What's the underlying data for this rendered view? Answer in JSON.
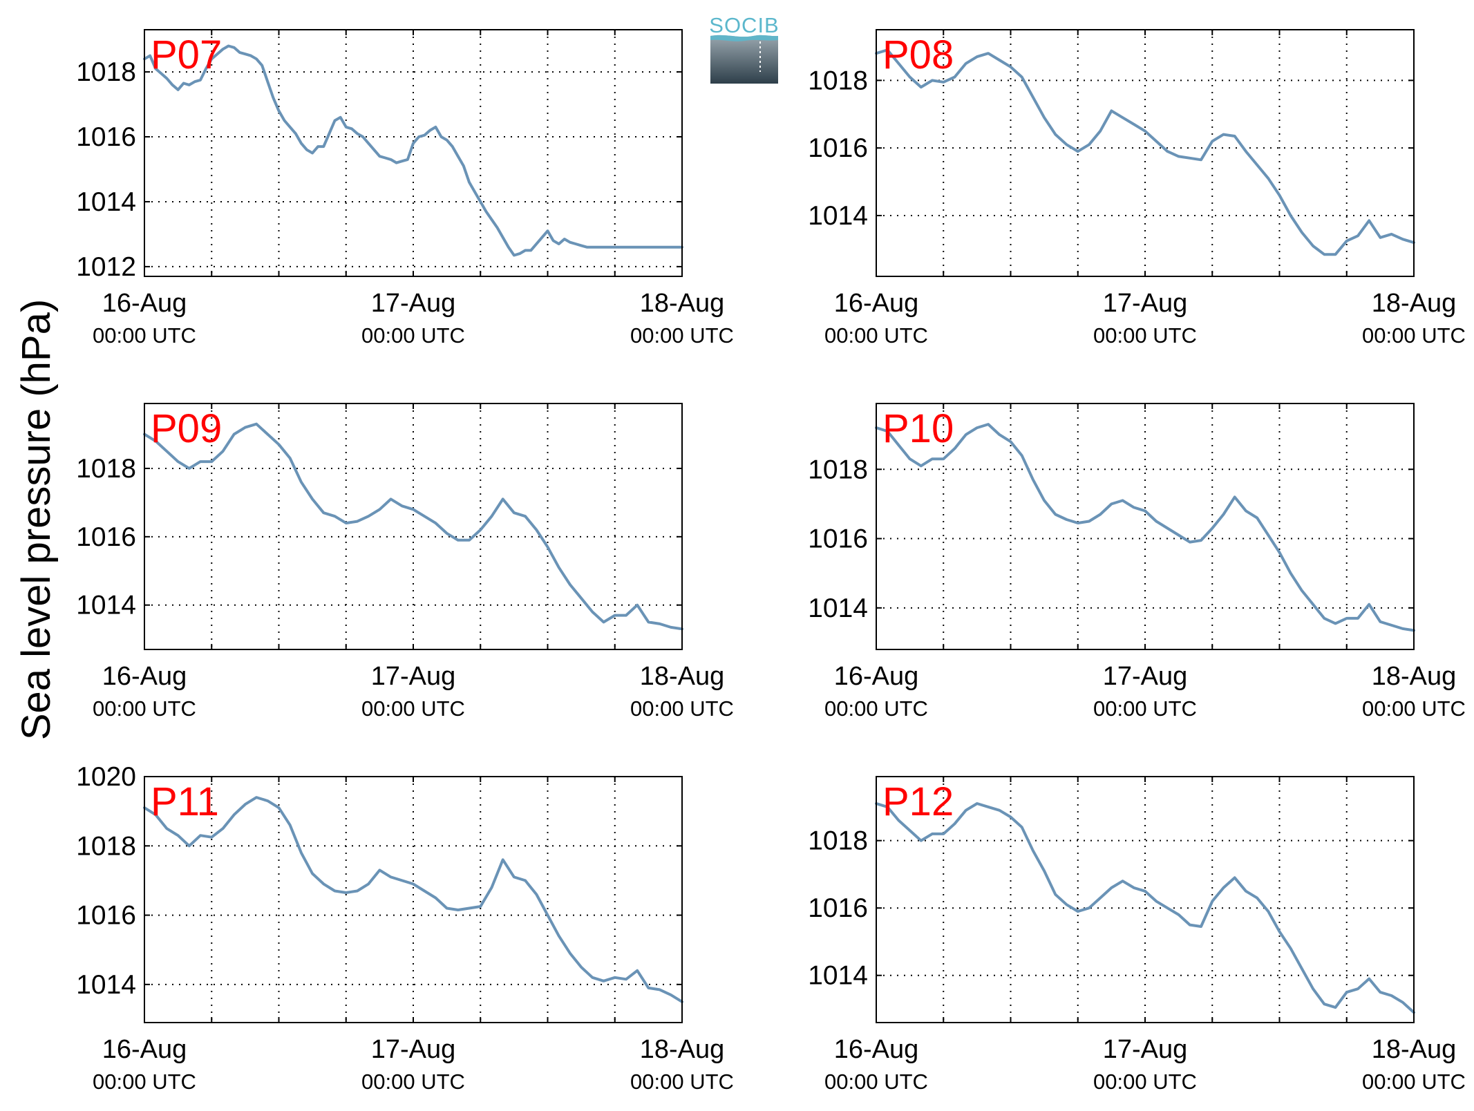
{
  "figure": {
    "ylabel": "Sea level pressure (hPa)",
    "logo_text": "SOCIB",
    "colors": {
      "line": "#6A93B6",
      "panel_label": "#FF0000",
      "grid": "#000000",
      "logo_accent": "#5BB7CC"
    }
  },
  "chart_data": [
    {
      "type": "line",
      "panel_label": "P07",
      "x_tick_dates": [
        "16-Aug",
        "17-Aug",
        "18-Aug"
      ],
      "x_tick_times": [
        "00:00 UTC",
        "00:00 UTC",
        "00:00 UTC"
      ],
      "xlim": [
        0,
        48
      ],
      "ylim": [
        1011.7,
        1019.3
      ],
      "yticks": [
        1012,
        1014,
        1016,
        1018
      ],
      "grid": true,
      "x": [
        0,
        0.5,
        1,
        1.5,
        2,
        2.5,
        3,
        3.5,
        4,
        4.5,
        5,
        5.5,
        6,
        6.5,
        7,
        7.5,
        8,
        8.5,
        9,
        9.5,
        10,
        10.5,
        11,
        11.5,
        12,
        12.5,
        13,
        13.5,
        14,
        14.5,
        15,
        15.5,
        16,
        16.5,
        17,
        17.5,
        18,
        18.5,
        19,
        19.5,
        20,
        20.5,
        21,
        21.5,
        22,
        22.5,
        23,
        23.5,
        24,
        24.5,
        25,
        25.5,
        26,
        26.5,
        27,
        27.5,
        28,
        28.5,
        29,
        29.5,
        30,
        30.5,
        31,
        31.5,
        32,
        32.5,
        33,
        33.5,
        34,
        34.5,
        35,
        35.5,
        36,
        36.5,
        37,
        37.5,
        38,
        38.5,
        39,
        39.5,
        40,
        40.5,
        41,
        41.5,
        42,
        42.5,
        43,
        43.5,
        44,
        44.5,
        45,
        45.5,
        46,
        46.5,
        47,
        47.5,
        48
      ],
      "y": [
        1018.4,
        1018.5,
        1018.1,
        1017.95,
        1017.8,
        1017.6,
        1017.45,
        1017.65,
        1017.6,
        1017.7,
        1017.75,
        1018.1,
        1018.4,
        1018.55,
        1018.7,
        1018.8,
        1018.75,
        1018.6,
        1018.55,
        1018.5,
        1018.4,
        1018.2,
        1017.7,
        1017.2,
        1016.8,
        1016.5,
        1016.3,
        1016.1,
        1015.8,
        1015.6,
        1015.5,
        1015.7,
        1015.7,
        1016.1,
        1016.5,
        1016.6,
        1016.3,
        1016.25,
        1016.1,
        1016.0,
        1015.8,
        1015.6,
        1015.4,
        1015.35,
        1015.3,
        1015.2,
        1015.25,
        1015.3,
        1015.8,
        1016.0,
        1016.05,
        1016.2,
        1016.3,
        1016.0,
        1015.9,
        1015.7,
        1015.4,
        1015.1,
        1014.6,
        1014.3,
        1014.0,
        1013.7,
        1013.45,
        1013.2,
        1012.9,
        1012.6,
        1012.35,
        1012.4,
        1012.5,
        1012.5,
        1012.7,
        1012.9,
        1013.1,
        1012.8,
        1012.7,
        1012.85,
        1012.75,
        1012.7,
        1012.65,
        1012.6,
        1012.6,
        1012.6,
        1012.6,
        1012.6,
        1012.6,
        1012.6,
        1012.6,
        1012.6,
        1012.6,
        1012.6,
        1012.6,
        1012.6,
        1012.6,
        1012.6,
        1012.6,
        1012.6,
        1012.6
      ]
    },
    {
      "type": "line",
      "panel_label": "P08",
      "x_tick_dates": [
        "16-Aug",
        "17-Aug",
        "18-Aug"
      ],
      "x_tick_times": [
        "00:00 UTC",
        "00:00 UTC",
        "00:00 UTC"
      ],
      "xlim": [
        0,
        48
      ],
      "ylim": [
        1012.2,
        1019.5
      ],
      "yticks": [
        1014,
        1016,
        1018
      ],
      "grid": true,
      "x": [
        0,
        1,
        2,
        3,
        4,
        5,
        6,
        7,
        8,
        9,
        10,
        11,
        12,
        13,
        14,
        15,
        16,
        17,
        18,
        19,
        20,
        21,
        22,
        23,
        24,
        25,
        26,
        27,
        28,
        29,
        30,
        31,
        32,
        33,
        34,
        35,
        36,
        37,
        38,
        39,
        40,
        41,
        42,
        43,
        44,
        45,
        46,
        47,
        48
      ],
      "y": [
        1018.8,
        1018.9,
        1018.5,
        1018.1,
        1017.8,
        1018.0,
        1017.95,
        1018.1,
        1018.5,
        1018.7,
        1018.8,
        1018.6,
        1018.4,
        1018.1,
        1017.5,
        1016.9,
        1016.4,
        1016.1,
        1015.9,
        1016.1,
        1016.5,
        1017.1,
        1016.9,
        1016.7,
        1016.5,
        1016.2,
        1015.9,
        1015.75,
        1015.7,
        1015.65,
        1016.2,
        1016.4,
        1016.35,
        1015.9,
        1015.5,
        1015.1,
        1014.6,
        1014.0,
        1013.5,
        1013.1,
        1012.85,
        1012.85,
        1013.25,
        1013.4,
        1013.85,
        1013.35,
        1013.45,
        1013.3,
        1013.2
      ]
    },
    {
      "type": "line",
      "panel_label": "P09",
      "x_tick_dates": [
        "16-Aug",
        "17-Aug",
        "18-Aug"
      ],
      "x_tick_times": [
        "00:00 UTC",
        "00:00 UTC",
        "00:00 UTC"
      ],
      "xlim": [
        0,
        48
      ],
      "ylim": [
        1012.7,
        1019.9
      ],
      "yticks": [
        1014,
        1016,
        1018
      ],
      "grid": true,
      "x": [
        0,
        1,
        2,
        3,
        4,
        5,
        6,
        7,
        8,
        9,
        10,
        11,
        12,
        13,
        14,
        15,
        16,
        17,
        18,
        19,
        20,
        21,
        22,
        23,
        24,
        25,
        26,
        27,
        28,
        29,
        30,
        31,
        32,
        33,
        34,
        35,
        36,
        37,
        38,
        39,
        40,
        41,
        42,
        43,
        44,
        45,
        46,
        47,
        48
      ],
      "y": [
        1019.0,
        1018.8,
        1018.5,
        1018.2,
        1018.0,
        1018.2,
        1018.2,
        1018.5,
        1019.0,
        1019.2,
        1019.3,
        1019.0,
        1018.7,
        1018.3,
        1017.6,
        1017.1,
        1016.7,
        1016.6,
        1016.4,
        1016.45,
        1016.6,
        1016.8,
        1017.1,
        1016.9,
        1016.8,
        1016.6,
        1016.4,
        1016.1,
        1015.9,
        1015.9,
        1016.2,
        1016.6,
        1017.1,
        1016.7,
        1016.6,
        1016.2,
        1015.7,
        1015.1,
        1014.6,
        1014.2,
        1013.8,
        1013.5,
        1013.7,
        1013.7,
        1014.0,
        1013.5,
        1013.45,
        1013.35,
        1013.3
      ]
    },
    {
      "type": "line",
      "panel_label": "P10",
      "x_tick_dates": [
        "16-Aug",
        "17-Aug",
        "18-Aug"
      ],
      "x_tick_times": [
        "00:00 UTC",
        "00:00 UTC",
        "00:00 UTC"
      ],
      "xlim": [
        0,
        48
      ],
      "ylim": [
        1012.8,
        1019.9
      ],
      "yticks": [
        1014,
        1016,
        1018
      ],
      "grid": true,
      "x": [
        0,
        1,
        2,
        3,
        4,
        5,
        6,
        7,
        8,
        9,
        10,
        11,
        12,
        13,
        14,
        15,
        16,
        17,
        18,
        19,
        20,
        21,
        22,
        23,
        24,
        25,
        26,
        27,
        28,
        29,
        30,
        31,
        32,
        33,
        34,
        35,
        36,
        37,
        38,
        39,
        40,
        41,
        42,
        43,
        44,
        45,
        46,
        47,
        48
      ],
      "y": [
        1019.2,
        1019.1,
        1018.7,
        1018.3,
        1018.1,
        1018.3,
        1018.3,
        1018.6,
        1019.0,
        1019.2,
        1019.3,
        1019.0,
        1018.8,
        1018.4,
        1017.7,
        1017.1,
        1016.7,
        1016.55,
        1016.45,
        1016.5,
        1016.7,
        1017.0,
        1017.1,
        1016.9,
        1016.8,
        1016.5,
        1016.3,
        1016.1,
        1015.9,
        1015.95,
        1016.3,
        1016.7,
        1017.2,
        1016.8,
        1016.6,
        1016.1,
        1015.6,
        1015.0,
        1014.5,
        1014.1,
        1013.7,
        1013.55,
        1013.7,
        1013.7,
        1014.1,
        1013.6,
        1013.5,
        1013.4,
        1013.35
      ]
    },
    {
      "type": "line",
      "panel_label": "P11",
      "x_tick_dates": [
        "16-Aug",
        "17-Aug",
        "18-Aug"
      ],
      "x_tick_times": [
        "00:00 UTC",
        "00:00 UTC",
        "00:00 UTC"
      ],
      "xlim": [
        0,
        48
      ],
      "ylim": [
        1012.9,
        1020.0
      ],
      "yticks": [
        1014,
        1016,
        1018,
        1020
      ],
      "grid": true,
      "x": [
        0,
        1,
        2,
        3,
        4,
        5,
        6,
        7,
        8,
        9,
        10,
        11,
        12,
        13,
        14,
        15,
        16,
        17,
        18,
        19,
        20,
        21,
        22,
        23,
        24,
        25,
        26,
        27,
        28,
        29,
        30,
        31,
        32,
        33,
        34,
        35,
        36,
        37,
        38,
        39,
        40,
        41,
        42,
        43,
        44,
        45,
        46,
        47,
        48
      ],
      "y": [
        1019.1,
        1018.9,
        1018.5,
        1018.3,
        1018.0,
        1018.3,
        1018.25,
        1018.5,
        1018.9,
        1019.2,
        1019.4,
        1019.3,
        1019.1,
        1018.6,
        1017.8,
        1017.2,
        1016.9,
        1016.7,
        1016.65,
        1016.7,
        1016.9,
        1017.3,
        1017.1,
        1017.0,
        1016.9,
        1016.7,
        1016.5,
        1016.2,
        1016.15,
        1016.2,
        1016.25,
        1016.8,
        1017.6,
        1017.1,
        1017.0,
        1016.6,
        1016.0,
        1015.4,
        1014.9,
        1014.5,
        1014.2,
        1014.1,
        1014.2,
        1014.15,
        1014.4,
        1013.9,
        1013.85,
        1013.7,
        1013.5
      ]
    },
    {
      "type": "line",
      "panel_label": "P12",
      "x_tick_dates": [
        "16-Aug",
        "17-Aug",
        "18-Aug"
      ],
      "x_tick_times": [
        "00:00 UTC",
        "00:00 UTC",
        "00:00 UTC"
      ],
      "xlim": [
        0,
        48
      ],
      "ylim": [
        1012.6,
        1019.9
      ],
      "yticks": [
        1014,
        1016,
        1018
      ],
      "grid": true,
      "x": [
        0,
        1,
        2,
        3,
        4,
        5,
        6,
        7,
        8,
        9,
        10,
        11,
        12,
        13,
        14,
        15,
        16,
        17,
        18,
        19,
        20,
        21,
        22,
        23,
        24,
        25,
        26,
        27,
        28,
        29,
        30,
        31,
        32,
        33,
        34,
        35,
        36,
        37,
        38,
        39,
        40,
        41,
        42,
        43,
        44,
        45,
        46,
        47,
        48
      ],
      "y": [
        1019.1,
        1019.0,
        1018.6,
        1018.3,
        1018.0,
        1018.2,
        1018.2,
        1018.5,
        1018.9,
        1019.1,
        1019.0,
        1018.9,
        1018.7,
        1018.4,
        1017.7,
        1017.1,
        1016.4,
        1016.1,
        1015.9,
        1016.0,
        1016.3,
        1016.6,
        1016.8,
        1016.6,
        1016.5,
        1016.2,
        1016.0,
        1015.8,
        1015.5,
        1015.45,
        1016.2,
        1016.6,
        1016.9,
        1016.5,
        1016.3,
        1015.9,
        1015.3,
        1014.8,
        1014.2,
        1013.6,
        1013.15,
        1013.05,
        1013.5,
        1013.6,
        1013.9,
        1013.5,
        1013.4,
        1013.2,
        1012.9
      ]
    }
  ]
}
